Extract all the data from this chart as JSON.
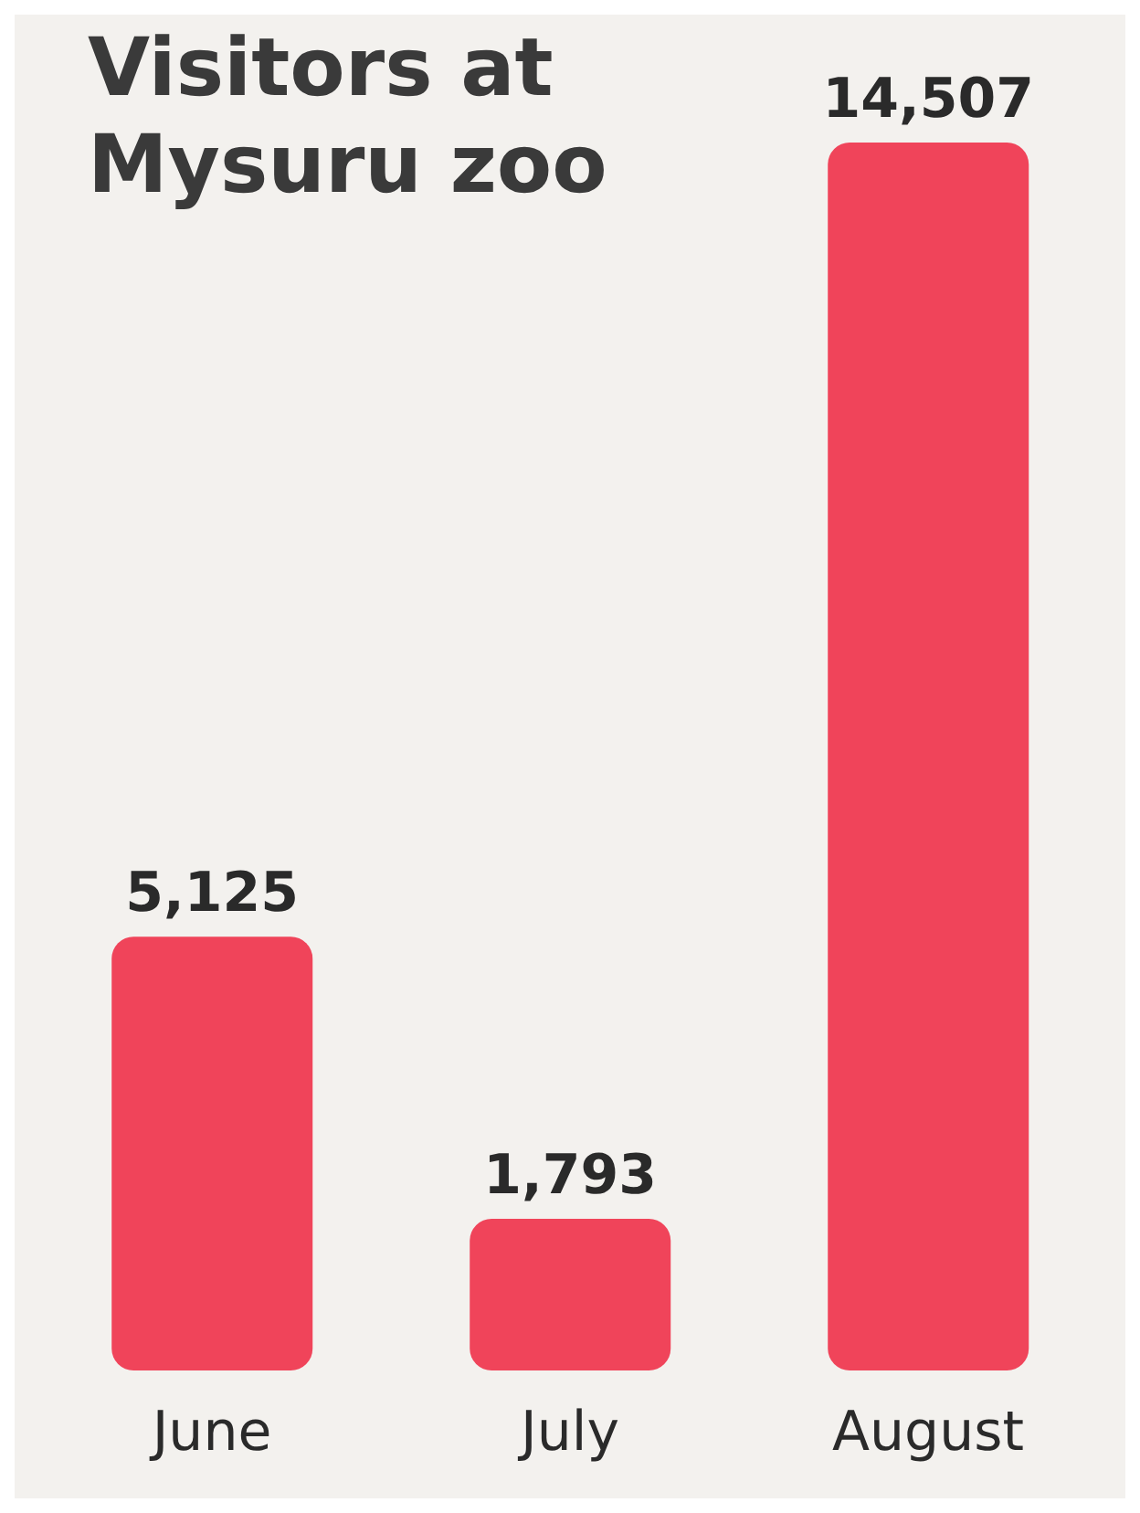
{
  "chart_data": {
    "type": "bar",
    "title": "Visitors at Mysuru zoo",
    "categories": [
      "June",
      "July",
      "August"
    ],
    "values": [
      5125,
      1793,
      14507
    ],
    "value_labels": [
      "5,125",
      "1,793",
      "14,507"
    ],
    "color": "#f0445a"
  }
}
